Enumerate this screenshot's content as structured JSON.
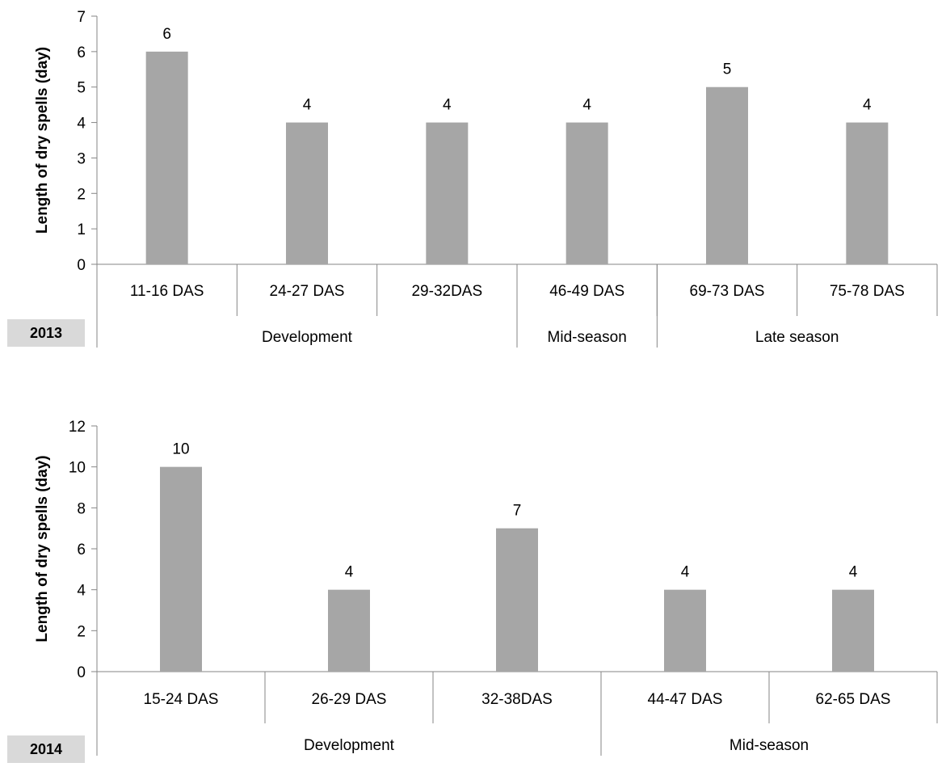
{
  "colors": {
    "bar": "#a6a6a6",
    "axis": "#868686"
  },
  "chart_data": [
    {
      "type": "bar",
      "panel_label": "2013",
      "ylabel": "Length of dry spells (day)",
      "ylim": [
        0,
        7
      ],
      "ytick_step": 1,
      "categories": [
        "11-16 DAS",
        "24-27 DAS",
        "29-32DAS",
        "46-49 DAS",
        "69-73 DAS",
        "75-78 DAS"
      ],
      "values": [
        6,
        4,
        4,
        4,
        5,
        4
      ],
      "groups": [
        {
          "label": "Development",
          "count": 3
        },
        {
          "label": "Mid-season",
          "count": 1
        },
        {
          "label": "Late season",
          "count": 2
        }
      ]
    },
    {
      "type": "bar",
      "panel_label": "2014",
      "ylabel": "Length of dry spells (day)",
      "ylim": [
        0,
        12
      ],
      "ytick_step": 2,
      "categories": [
        "15-24 DAS",
        "26-29 DAS",
        "32-38DAS",
        "44-47 DAS",
        "62-65 DAS"
      ],
      "values": [
        10,
        4,
        7,
        4,
        4
      ],
      "groups": [
        {
          "label": "Development",
          "count": 3
        },
        {
          "label": "Mid-season",
          "count": 2
        }
      ]
    }
  ]
}
